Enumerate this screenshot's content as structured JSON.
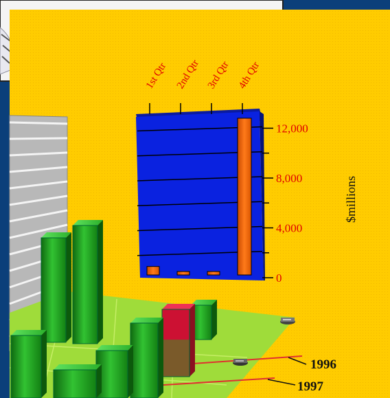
{
  "chart_data": [
    {
      "type": "bar",
      "categories": [
        "1st Qtr",
        "2nd Qtr",
        "3rd Qtr",
        "4th Qtr"
      ],
      "values": [
        900,
        500,
        500,
        12800
      ],
      "ylabel": "$millions",
      "ylim": [
        0,
        12000
      ],
      "yticks": [
        "0",
        "4,000",
        "8,000",
        "12,000"
      ],
      "grid": true,
      "colors": {
        "panel": "#0a22e0",
        "bar": "#ff6600",
        "text": "#e00000"
      }
    },
    {
      "type": "bar",
      "series": [
        {
          "name": "1996",
          "color": "#cc1133"
        },
        {
          "name": "1997",
          "color": "#1f9e1f"
        }
      ]
    }
  ],
  "colors": {
    "background": "#ffcc00",
    "floor": "#99dd33",
    "frame": "#0b3f7a"
  }
}
